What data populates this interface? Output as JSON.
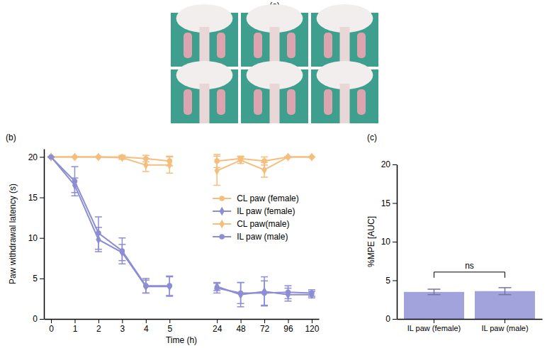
{
  "photo_panel": {
    "panel": "(a)"
  },
  "chart_data": [
    {
      "type": "line",
      "panel": "(b)",
      "x_label": "Time (h)",
      "y_label": "Paw withdrawal latency (s)",
      "categories": [
        "0",
        "1",
        "2",
        "3",
        "4",
        "5",
        null,
        "24",
        "48",
        "72",
        "96",
        "120"
      ],
      "ylim": [
        0,
        21
      ],
      "yticks": [
        0,
        5,
        10,
        15,
        20
      ],
      "grid": false,
      "legend": "right",
      "series": [
        {
          "name": "CL paw (female)",
          "color": "#f6be7c",
          "marker": "circle",
          "values": [
            20,
            20,
            20,
            20,
            19.8,
            19.5,
            null,
            19.5,
            19.8,
            19.5,
            20,
            20
          ],
          "errors": [
            0,
            0,
            0,
            0.2,
            0.4,
            0.6,
            null,
            0.8,
            0.3,
            0.5,
            0,
            0
          ]
        },
        {
          "name": "IL paw (female)",
          "color": "#8d8dd4",
          "marker": "diamond",
          "values": [
            20,
            16.5,
            9.8,
            8.2,
            4.0,
            4.0,
            null,
            4.0,
            3.0,
            3.4,
            3.0,
            3.0
          ],
          "errors": [
            0,
            0.9,
            1.5,
            1.0,
            0.8,
            1.2,
            null,
            0.5,
            1.5,
            1.8,
            0.8,
            0.4
          ]
        },
        {
          "name": "CL paw(male)",
          "color": "#f6be7c",
          "marker": "diamond",
          "values": [
            20,
            20,
            20,
            19.9,
            19.0,
            19.0,
            null,
            18.3,
            19.6,
            18.4,
            20,
            20
          ],
          "errors": [
            0,
            0,
            0,
            0.2,
            0.8,
            1.0,
            null,
            1.8,
            0.4,
            0.9,
            0,
            0
          ]
        },
        {
          "name": "IL  paw (male)",
          "color": "#8d8dd4",
          "marker": "circle",
          "values": [
            20,
            17.0,
            10.6,
            8.4,
            4.1,
            4.1,
            null,
            3.8,
            3.2,
            3.2,
            3.3,
            3.2
          ],
          "errors": [
            0,
            1.8,
            2.0,
            1.6,
            0.9,
            1.2,
            null,
            0.6,
            1.3,
            1.5,
            0.8,
            0.4
          ]
        }
      ]
    },
    {
      "type": "bar",
      "panel": "(c)",
      "y_label": "%MPE [AUC]",
      "categories": [
        "IL paw (female)",
        "IL paw (male)"
      ],
      "values": [
        3.5,
        3.6
      ],
      "errors": [
        0.35,
        0.45
      ],
      "color": "#a2a2dc",
      "ylim": [
        0,
        20
      ],
      "yticks": [
        0,
        5,
        10,
        15,
        20
      ],
      "grid": false,
      "annotations": [
        "ns"
      ]
    }
  ]
}
